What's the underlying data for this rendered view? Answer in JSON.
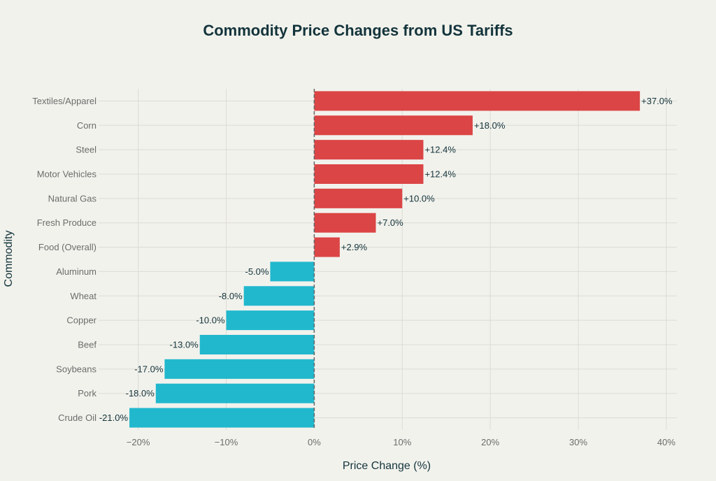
{
  "chart_data": {
    "type": "bar",
    "orientation": "horizontal",
    "title": "Commodity Price Changes from US Tariffs",
    "xlabel": "Price Change (%)",
    "ylabel": "Commodity",
    "categories": [
      "Textiles/Apparel",
      "Corn",
      "Steel",
      "Motor Vehicles",
      "Natural Gas",
      "Fresh Produce",
      "Food (Overall)",
      "Aluminum",
      "Wheat",
      "Copper",
      "Beef",
      "Soybeans",
      "Pork",
      "Crude Oil"
    ],
    "values": [
      37.0,
      18.0,
      12.4,
      12.4,
      10.0,
      7.0,
      2.9,
      -5.0,
      -8.0,
      -10.0,
      -13.0,
      -17.0,
      -18.0,
      -21.0
    ],
    "data_labels": [
      "+37.0%",
      "+18.0%",
      "+12.4%",
      "+12.4%",
      "+10.0%",
      "+7.0%",
      "+2.9%",
      "-5.0%",
      "-8.0%",
      "-10.0%",
      "-13.0%",
      "-17.0%",
      "-18.0%",
      "-21.0%"
    ],
    "xticks": [
      -20,
      -10,
      0,
      10,
      20,
      30,
      40
    ],
    "xtick_labels": [
      "−20%",
      "−10%",
      "0%",
      "10%",
      "20%",
      "30%",
      "40%"
    ],
    "xlim": [
      -24.5,
      41.2
    ],
    "grid": true,
    "colors": {
      "positive": "#db4545",
      "negative": "#21b8cd",
      "background": "#f2f2ed",
      "title": "#13343b"
    }
  }
}
